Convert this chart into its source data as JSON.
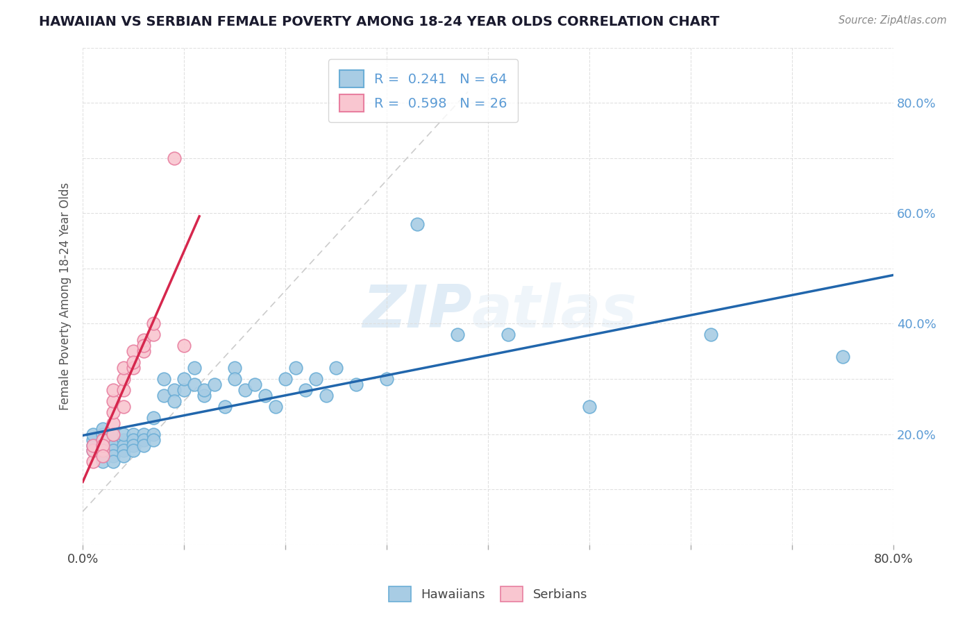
{
  "title": "HAWAIIAN VS SERBIAN FEMALE POVERTY AMONG 18-24 YEAR OLDS CORRELATION CHART",
  "source": "Source: ZipAtlas.com",
  "ylabel": "Female Poverty Among 18-24 Year Olds",
  "xlim": [
    0.0,
    0.8
  ],
  "ylim": [
    0.0,
    0.9
  ],
  "hawaiian_color": "#a8cce4",
  "hawaiian_edge_color": "#6baed6",
  "serbian_color": "#f9c6d0",
  "serbian_edge_color": "#e87fa0",
  "trendline_hawaiian_color": "#2166ac",
  "trendline_serbian_color": "#d6274d",
  "diag_color": "#cccccc",
  "R_hawaiian": 0.241,
  "N_hawaiian": 64,
  "R_serbian": 0.598,
  "N_serbian": 26,
  "watermark_zip": "ZIP",
  "watermark_atlas": "atlas",
  "background_color": "#ffffff",
  "grid_color": "#dddddd",
  "title_color": "#1a1a2e",
  "source_color": "#888888",
  "axis_label_color": "#555555",
  "tick_color": "#5b9bd5",
  "hawaiians_x": [
    0.01,
    0.01,
    0.01,
    0.01,
    0.02,
    0.02,
    0.02,
    0.02,
    0.02,
    0.02,
    0.02,
    0.03,
    0.03,
    0.03,
    0.03,
    0.03,
    0.03,
    0.04,
    0.04,
    0.04,
    0.04,
    0.04,
    0.05,
    0.05,
    0.05,
    0.05,
    0.06,
    0.06,
    0.06,
    0.07,
    0.07,
    0.07,
    0.08,
    0.08,
    0.09,
    0.09,
    0.1,
    0.1,
    0.11,
    0.11,
    0.12,
    0.12,
    0.13,
    0.14,
    0.15,
    0.15,
    0.16,
    0.17,
    0.18,
    0.19,
    0.2,
    0.21,
    0.22,
    0.23,
    0.24,
    0.25,
    0.27,
    0.3,
    0.33,
    0.37,
    0.42,
    0.5,
    0.62,
    0.75
  ],
  "hawaiians_y": [
    0.19,
    0.18,
    0.17,
    0.2,
    0.19,
    0.17,
    0.18,
    0.16,
    0.15,
    0.2,
    0.21,
    0.19,
    0.18,
    0.17,
    0.2,
    0.16,
    0.15,
    0.19,
    0.18,
    0.17,
    0.2,
    0.16,
    0.2,
    0.19,
    0.18,
    0.17,
    0.2,
    0.19,
    0.18,
    0.2,
    0.19,
    0.23,
    0.27,
    0.3,
    0.28,
    0.26,
    0.28,
    0.3,
    0.29,
    0.32,
    0.27,
    0.28,
    0.29,
    0.25,
    0.32,
    0.3,
    0.28,
    0.29,
    0.27,
    0.25,
    0.3,
    0.32,
    0.28,
    0.3,
    0.27,
    0.32,
    0.29,
    0.3,
    0.58,
    0.38,
    0.38,
    0.25,
    0.38,
    0.34
  ],
  "serbians_x": [
    0.01,
    0.01,
    0.01,
    0.02,
    0.02,
    0.02,
    0.02,
    0.03,
    0.03,
    0.03,
    0.03,
    0.03,
    0.04,
    0.04,
    0.04,
    0.04,
    0.05,
    0.05,
    0.05,
    0.06,
    0.06,
    0.06,
    0.07,
    0.07,
    0.09,
    0.1
  ],
  "serbians_y": [
    0.15,
    0.17,
    0.18,
    0.19,
    0.17,
    0.18,
    0.16,
    0.22,
    0.24,
    0.26,
    0.28,
    0.2,
    0.25,
    0.28,
    0.3,
    0.32,
    0.32,
    0.35,
    0.33,
    0.35,
    0.37,
    0.36,
    0.38,
    0.4,
    0.7,
    0.36
  ]
}
